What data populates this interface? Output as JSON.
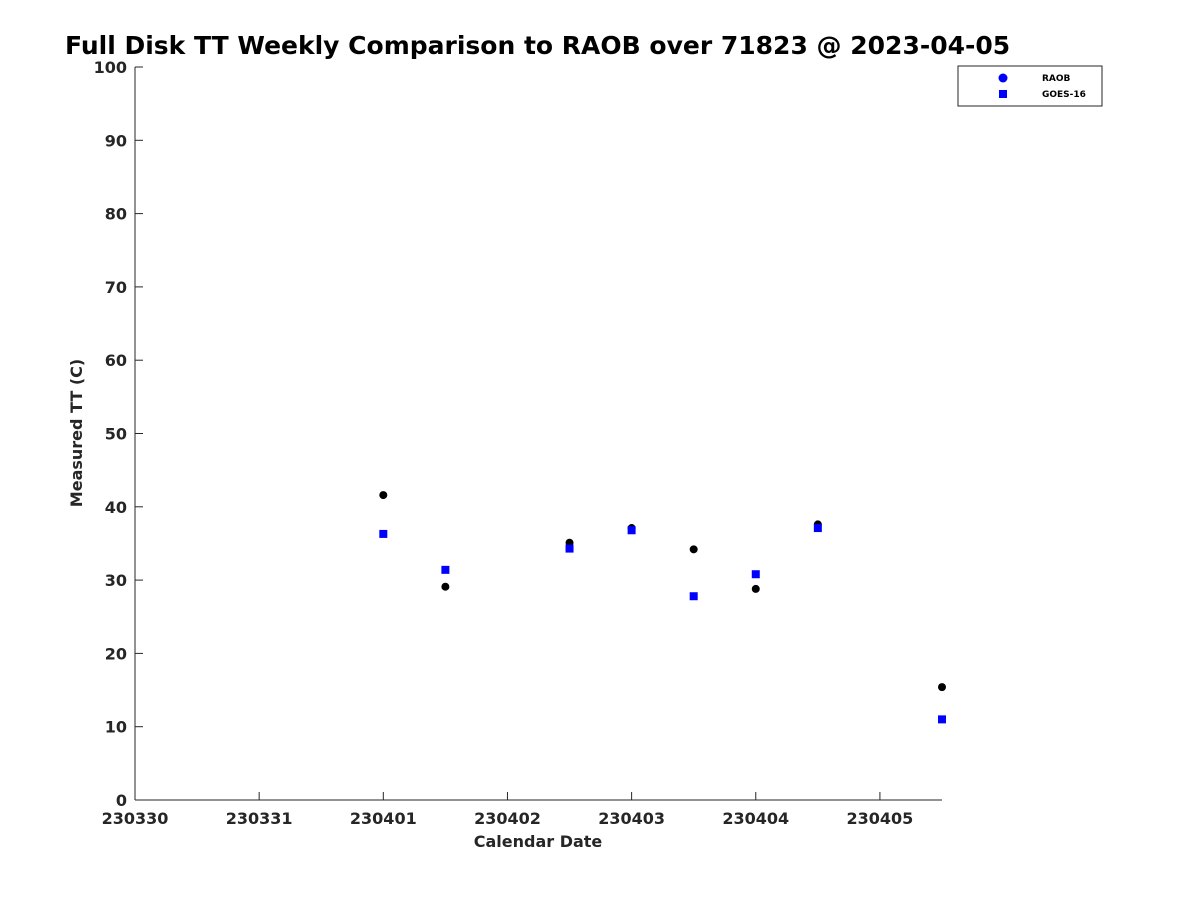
{
  "chart_data": {
    "type": "scatter",
    "title": "Full Disk TT Weekly Comparison to RAOB over 71823 @ 2023-04-05",
    "xlabel": "Calendar Date",
    "ylabel": "Measured TT (C)",
    "xlim": [
      "2023-03-30",
      "2023-04-05 12:00"
    ],
    "ylim": [
      0,
      100
    ],
    "x_ticks": [
      "230330",
      "230331",
      "230401",
      "230402",
      "230403",
      "230404",
      "230405"
    ],
    "y_ticks": [
      "0",
      "10",
      "20",
      "30",
      "40",
      "50",
      "60",
      "70",
      "80",
      "90",
      "100"
    ],
    "grid": false,
    "legend_position": "top-right",
    "series": [
      {
        "name": "RAOB",
        "marker": "circle",
        "color": "#000000",
        "legend_color": "#0000ff",
        "points": [
          {
            "x": "2023-04-01 00:00",
            "y": 41.6
          },
          {
            "x": "2023-04-01 12:00",
            "y": 29.1
          },
          {
            "x": "2023-04-02 12:00",
            "y": 35.1
          },
          {
            "x": "2023-04-03 00:00",
            "y": 37.1
          },
          {
            "x": "2023-04-03 12:00",
            "y": 34.2
          },
          {
            "x": "2023-04-04 00:00",
            "y": 28.8
          },
          {
            "x": "2023-04-04 12:00",
            "y": 37.6
          },
          {
            "x": "2023-04-05 12:00",
            "y": 15.4
          }
        ]
      },
      {
        "name": "GOES-16",
        "marker": "square",
        "color": "#0000ff",
        "points": [
          {
            "x": "2023-04-01 00:00",
            "y": 36.3
          },
          {
            "x": "2023-04-01 12:00",
            "y": 31.4
          },
          {
            "x": "2023-04-02 12:00",
            "y": 34.3
          },
          {
            "x": "2023-04-03 00:00",
            "y": 36.8
          },
          {
            "x": "2023-04-03 12:00",
            "y": 27.8
          },
          {
            "x": "2023-04-04 00:00",
            "y": 30.8
          },
          {
            "x": "2023-04-04 12:00",
            "y": 37.1
          },
          {
            "x": "2023-04-05 12:00",
            "y": 11.0
          }
        ]
      }
    ]
  }
}
